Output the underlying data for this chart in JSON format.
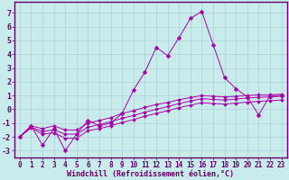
{
  "xlabel": "Windchill (Refroidissement éolien,°C)",
  "background_color": "#c8ecec",
  "grid_color": "#b0d0d0",
  "line_color": "#aa00aa",
  "spine_color": "#660066",
  "x_ticks": [
    0,
    1,
    2,
    3,
    4,
    5,
    6,
    7,
    8,
    9,
    10,
    11,
    12,
    13,
    14,
    15,
    16,
    17,
    18,
    19,
    20,
    21,
    22,
    23
  ],
  "y_ticks": [
    -3,
    -2,
    -1,
    0,
    1,
    2,
    3,
    4,
    5,
    6,
    7
  ],
  "ylim": [
    -3.5,
    7.8
  ],
  "xlim": [
    -0.5,
    23.5
  ],
  "series": [
    [
      -2.0,
      -1.2,
      -2.6,
      -1.4,
      -3.0,
      -1.8,
      -0.8,
      -1.2,
      -1.0,
      -0.3,
      1.4,
      2.7,
      4.5,
      3.9,
      5.2,
      6.6,
      7.1,
      4.7,
      2.3,
      1.5,
      0.9,
      -0.4,
      1.0,
      1.0
    ],
    [
      -2.0,
      -1.2,
      -1.4,
      -1.2,
      -1.5,
      -1.5,
      -1.0,
      -0.8,
      -0.6,
      -0.3,
      -0.1,
      0.15,
      0.35,
      0.5,
      0.7,
      0.85,
      1.0,
      0.95,
      0.9,
      0.95,
      1.0,
      1.05,
      1.05,
      1.1
    ],
    [
      -2.0,
      -1.3,
      -1.6,
      -1.5,
      -1.8,
      -1.8,
      -1.3,
      -1.1,
      -0.9,
      -0.65,
      -0.45,
      -0.2,
      0.0,
      0.2,
      0.42,
      0.6,
      0.78,
      0.72,
      0.68,
      0.75,
      0.82,
      0.88,
      0.9,
      0.95
    ],
    [
      -2.0,
      -1.35,
      -1.8,
      -1.7,
      -2.1,
      -2.1,
      -1.55,
      -1.4,
      -1.2,
      -0.95,
      -0.75,
      -0.5,
      -0.3,
      -0.1,
      0.12,
      0.3,
      0.48,
      0.42,
      0.38,
      0.45,
      0.52,
      0.58,
      0.62,
      0.68
    ]
  ],
  "tick_fontsize": 5.5,
  "xlabel_fontsize": 6.0
}
